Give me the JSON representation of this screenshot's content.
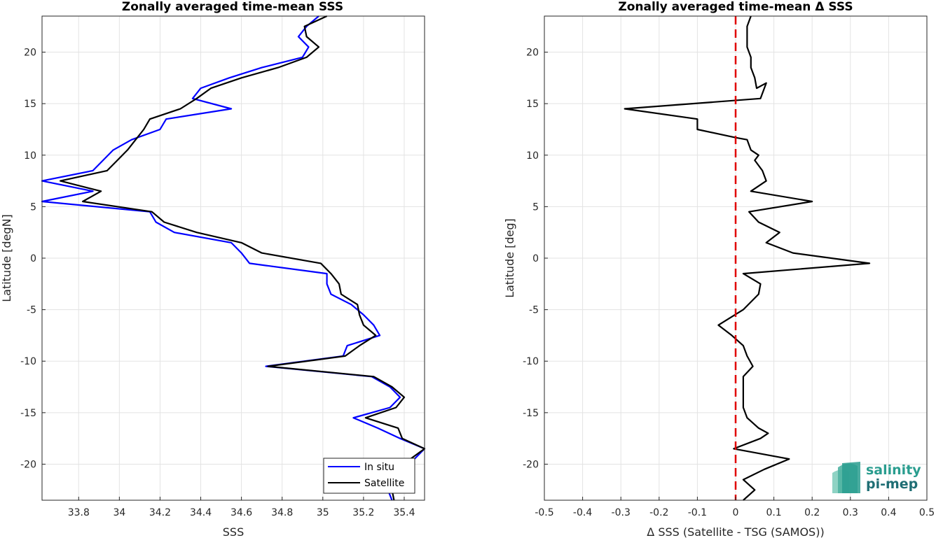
{
  "chart_data": [
    {
      "type": "line",
      "title": "Zonally averaged time-mean SSS",
      "xlabel": "SSS",
      "ylabel": "Latitude [degN]",
      "xlim": [
        33.62,
        35.5
      ],
      "ylim": [
        -23.5,
        23.5
      ],
      "xticks": [
        33.8,
        34,
        34.2,
        34.4,
        34.6,
        34.8,
        35,
        35.2,
        35.4
      ],
      "xtick_labels": [
        "33.8",
        "34",
        "34.2",
        "34.4",
        "34.6",
        "34.8",
        "35",
        "35.2",
        "35.4"
      ],
      "yticks": [
        -20,
        -15,
        -10,
        -5,
        0,
        5,
        10,
        15,
        20
      ],
      "ytick_labels": [
        "-20",
        "-15",
        "-10",
        "-5",
        "0",
        "5",
        "10",
        "15",
        "20"
      ],
      "grid": true,
      "legend": "bottom-right",
      "series": [
        {
          "name": "In situ",
          "color": "#0000ff",
          "points": [
            [
              34.98,
              23.5
            ],
            [
              34.92,
              22.5
            ],
            [
              34.88,
              21.5
            ],
            [
              34.93,
              20.5
            ],
            [
              34.9,
              19.5
            ],
            [
              34.7,
              18.5
            ],
            [
              34.54,
              17.5
            ],
            [
              34.4,
              16.5
            ],
            [
              34.36,
              15.5
            ],
            [
              34.55,
              14.5
            ],
            [
              34.23,
              13.5
            ],
            [
              34.2,
              12.5
            ],
            [
              34.06,
              11.5
            ],
            [
              33.97,
              10.5
            ],
            [
              33.92,
              9.5
            ],
            [
              33.87,
              8.5
            ],
            [
              33.62,
              7.5
            ],
            [
              33.87,
              6.5
            ],
            [
              33.62,
              5.5
            ],
            [
              34.15,
              4.5
            ],
            [
              34.18,
              3.5
            ],
            [
              34.27,
              2.5
            ],
            [
              34.55,
              1.5
            ],
            [
              34.6,
              0.5
            ],
            [
              34.64,
              -0.5
            ],
            [
              35.02,
              -1.5
            ],
            [
              35.02,
              -2.5
            ],
            [
              35.04,
              -3.5
            ],
            [
              35.14,
              -4.5
            ],
            [
              35.2,
              -5.5
            ],
            [
              35.25,
              -6.5
            ],
            [
              35.28,
              -7.5
            ],
            [
              35.12,
              -8.5
            ],
            [
              35.1,
              -9.5
            ],
            [
              34.72,
              -10.5
            ],
            [
              35.24,
              -11.5
            ],
            [
              35.33,
              -12.5
            ],
            [
              35.38,
              -13.5
            ],
            [
              35.33,
              -14.5
            ],
            [
              35.15,
              -15.5
            ],
            [
              35.27,
              -16.5
            ],
            [
              35.38,
              -17.5
            ],
            [
              35.5,
              -18.5
            ],
            [
              35.45,
              -19.5
            ],
            [
              35.4,
              -20.5
            ],
            [
              35.35,
              -21.5
            ],
            [
              35.32,
              -22.5
            ],
            [
              35.34,
              -23.5
            ]
          ]
        },
        {
          "name": "Satellite",
          "color": "#000000",
          "points": [
            [
              35.02,
              23.5
            ],
            [
              34.91,
              22.5
            ],
            [
              34.92,
              21.5
            ],
            [
              34.98,
              20.5
            ],
            [
              34.92,
              19.5
            ],
            [
              34.78,
              18.5
            ],
            [
              34.6,
              17.5
            ],
            [
              34.45,
              16.5
            ],
            [
              34.38,
              15.5
            ],
            [
              34.3,
              14.5
            ],
            [
              34.15,
              13.5
            ],
            [
              34.12,
              12.5
            ],
            [
              34.08,
              11.5
            ],
            [
              34.04,
              10.5
            ],
            [
              33.99,
              9.5
            ],
            [
              33.94,
              8.5
            ],
            [
              33.71,
              7.5
            ],
            [
              33.91,
              6.5
            ],
            [
              33.82,
              5.5
            ],
            [
              34.16,
              4.5
            ],
            [
              34.22,
              3.5
            ],
            [
              34.38,
              2.5
            ],
            [
              34.6,
              1.5
            ],
            [
              34.7,
              0.5
            ],
            [
              34.99,
              -0.5
            ],
            [
              35.04,
              -1.5
            ],
            [
              35.08,
              -2.5
            ],
            [
              35.09,
              -3.5
            ],
            [
              35.17,
              -4.5
            ],
            [
              35.18,
              -5.5
            ],
            [
              35.2,
              -6.5
            ],
            [
              35.26,
              -7.5
            ],
            [
              35.18,
              -8.5
            ],
            [
              35.11,
              -9.5
            ],
            [
              34.73,
              -10.5
            ],
            [
              35.25,
              -11.5
            ],
            [
              35.34,
              -12.5
            ],
            [
              35.4,
              -13.5
            ],
            [
              35.36,
              -14.5
            ],
            [
              35.21,
              -15.5
            ],
            [
              35.37,
              -16.5
            ],
            [
              35.39,
              -17.5
            ],
            [
              35.5,
              -18.5
            ],
            [
              35.43,
              -19.5
            ],
            [
              35.38,
              -20.5
            ],
            [
              35.35,
              -21.5
            ],
            [
              35.34,
              -22.5
            ],
            [
              35.35,
              -23.5
            ]
          ]
        }
      ]
    },
    {
      "type": "line",
      "title": "Zonally averaged time-mean Δ SSS",
      "xlabel": "Δ SSS (Satellite - TSG (SAMOS))",
      "ylabel": "Latitude [deg]",
      "xlim": [
        -0.5,
        0.5
      ],
      "ylim": [
        -23.5,
        23.5
      ],
      "xticks": [
        -0.5,
        -0.4,
        -0.3,
        -0.2,
        -0.1,
        0,
        0.1,
        0.2,
        0.3,
        0.4,
        0.5
      ],
      "xtick_labels": [
        "-0.5",
        "-0.4",
        "-0.3",
        "-0.2",
        "-0.1",
        "0",
        "0.1",
        "0.2",
        "0.3",
        "0.4",
        "0.5"
      ],
      "yticks": [
        -20,
        -15,
        -10,
        -5,
        0,
        5,
        10,
        15,
        20
      ],
      "ytick_labels": [
        "-20",
        "-15",
        "-10",
        "-5",
        "0",
        "5",
        "10",
        "15",
        "20"
      ],
      "grid": true,
      "reference_line": {
        "x": 0,
        "color": "#e00000",
        "style": "dashed"
      },
      "series": [
        {
          "name": "",
          "color": "#000000",
          "points": [
            [
              0.04,
              23.5
            ],
            [
              0.03,
              22.5
            ],
            [
              0.03,
              21.5
            ],
            [
              0.03,
              20.5
            ],
            [
              0.04,
              19.5
            ],
            [
              0.04,
              18.5
            ],
            [
              0.05,
              17.5
            ],
            [
              0.055,
              16.5
            ],
            [
              0.08,
              17.0
            ],
            [
              0.065,
              15.5
            ],
            [
              -0.29,
              14.5
            ],
            [
              -0.1,
              13.5
            ],
            [
              -0.1,
              12.5
            ],
            [
              0.0,
              11.7
            ],
            [
              0.03,
              11.5
            ],
            [
              0.04,
              10.5
            ],
            [
              0.06,
              10.0
            ],
            [
              0.05,
              9.5
            ],
            [
              0.07,
              8.5
            ],
            [
              0.08,
              7.5
            ],
            [
              0.04,
              6.5
            ],
            [
              0.2,
              5.5
            ],
            [
              0.035,
              4.5
            ],
            [
              0.06,
              3.5
            ],
            [
              0.115,
              2.5
            ],
            [
              0.08,
              1.5
            ],
            [
              0.15,
              0.5
            ],
            [
              0.35,
              -0.5
            ],
            [
              0.02,
              -1.5
            ],
            [
              0.065,
              -2.5
            ],
            [
              0.06,
              -3.5
            ],
            [
              0.02,
              -5.0
            ],
            [
              -0.045,
              -6.5
            ],
            [
              -0.01,
              -7.5
            ],
            [
              0.02,
              -8.5
            ],
            [
              0.03,
              -9.5
            ],
            [
              0.045,
              -10.5
            ],
            [
              0.02,
              -11.5
            ],
            [
              0.02,
              -12.5
            ],
            [
              0.02,
              -13.5
            ],
            [
              0.02,
              -14.5
            ],
            [
              0.03,
              -15.5
            ],
            [
              0.06,
              -16.5
            ],
            [
              0.085,
              -17.0
            ],
            [
              0.065,
              -17.5
            ],
            [
              -0.005,
              -18.5
            ],
            [
              0.14,
              -19.5
            ],
            [
              0.075,
              -20.5
            ],
            [
              0.02,
              -21.5
            ],
            [
              0.05,
              -22.5
            ],
            [
              0.02,
              -23.5
            ]
          ]
        }
      ]
    }
  ],
  "legend": {
    "items": [
      "In situ",
      "Satellite"
    ]
  },
  "logo": {
    "line1": "salinity",
    "line2": "pi-mep",
    "colors": [
      "#2a9d8f",
      "#1f6e74"
    ]
  }
}
